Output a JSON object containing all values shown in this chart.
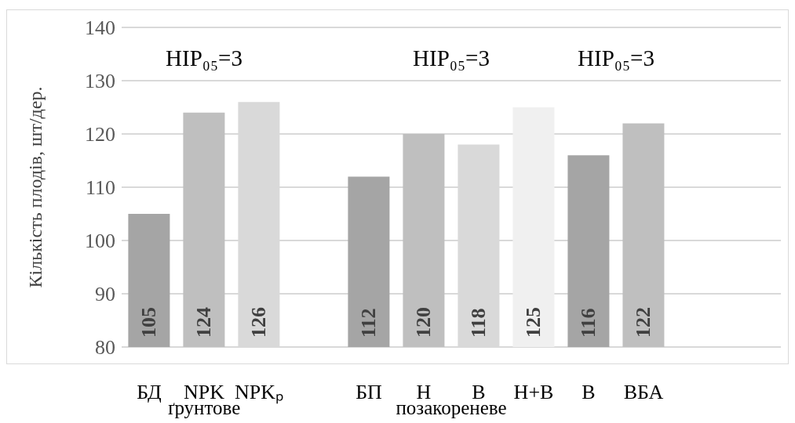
{
  "chart_data": {
    "type": "bar",
    "ylabel": "Кількість плодів, шт/дер.",
    "categories": [
      "БД",
      "NPK",
      "NPKₚ",
      null,
      "БП",
      "Н",
      "В",
      "Н+В",
      "В",
      "ВБА",
      null,
      null
    ],
    "values": [
      105,
      124,
      126,
      null,
      112,
      120,
      118,
      125,
      116,
      122,
      null,
      null
    ],
    "colors": [
      "#a5a5a5",
      "#bfbfbf",
      "#d9d9d9",
      null,
      "#a5a5a5",
      "#bfbfbf",
      "#d9d9d9",
      "#f0f0f0",
      "#a5a5a5",
      "#bfbfbf",
      null,
      null
    ],
    "ylim": [
      80,
      140
    ],
    "yticks": [
      80,
      90,
      100,
      110,
      120,
      130,
      140
    ],
    "grid": "y",
    "data_labels": true,
    "legend": false,
    "annotations": [
      "НІР₀₅=3",
      "НІР₀₅=3",
      "НІР₀₅=3",
      "ґрунтове",
      "позакореневе"
    ]
  }
}
